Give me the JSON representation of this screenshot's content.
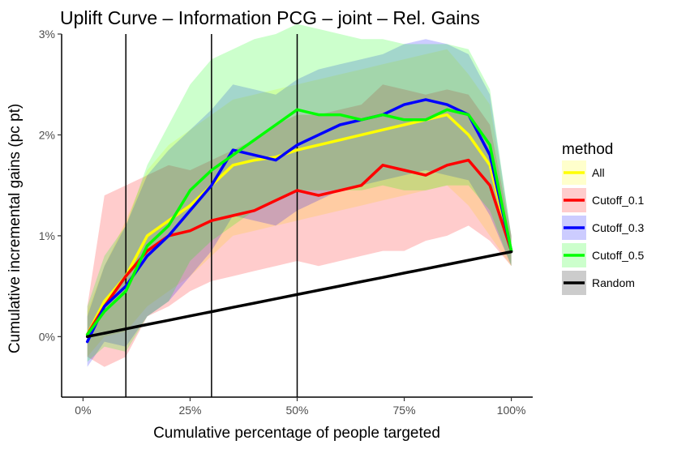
{
  "chart_data": {
    "type": "line",
    "title": "Uplift Curve –  Information PCG  –  joint  –  Rel. Gains",
    "xlabel": "Cumulative percentage of people targeted",
    "ylabel": "Cumulative incremental gains (pc pt)",
    "xlim": [
      -0.05,
      1.05
    ],
    "ylim": [
      -0.6,
      3.0
    ],
    "x_ticks": [
      0,
      0.25,
      0.5,
      0.75,
      1.0
    ],
    "x_tick_labels": [
      "0%",
      "25%",
      "50%",
      "75%",
      "100%"
    ],
    "y_ticks": [
      0,
      1,
      2,
      3
    ],
    "y_tick_labels": [
      "0%",
      "1%",
      "2%",
      "3%"
    ],
    "vlines": [
      0.1,
      0.3,
      0.5
    ],
    "grid": false,
    "legend": {
      "title": "method",
      "position": "right",
      "entries": [
        {
          "label": "All",
          "color": "#ffff00"
        },
        {
          "label": "Cutoff_0.1",
          "color": "#ff0000"
        },
        {
          "label": "Cutoff_0.3",
          "color": "#0000ff"
        },
        {
          "label": "Cutoff_0.5",
          "color": "#00ff00"
        },
        {
          "label": "Random",
          "color": "#000000"
        }
      ]
    },
    "x": [
      0.01,
      0.05,
      0.1,
      0.15,
      0.2,
      0.25,
      0.3,
      0.35,
      0.4,
      0.45,
      0.5,
      0.55,
      0.6,
      0.65,
      0.7,
      0.75,
      0.8,
      0.85,
      0.9,
      0.95,
      1.0
    ],
    "series": [
      {
        "name": "All",
        "color": "#ffff00",
        "values": [
          0.02,
          0.35,
          0.6,
          1.0,
          1.15,
          1.3,
          1.5,
          1.7,
          1.75,
          1.78,
          1.85,
          1.9,
          1.95,
          2.0,
          2.05,
          2.1,
          2.15,
          2.2,
          2.0,
          1.7,
          0.85
        ],
        "lower": [
          -0.2,
          0.0,
          0.05,
          0.3,
          0.45,
          0.6,
          0.8,
          1.0,
          1.05,
          1.1,
          1.15,
          1.2,
          1.25,
          1.3,
          1.35,
          1.4,
          1.45,
          1.5,
          1.3,
          1.0,
          0.7
        ],
        "upper": [
          0.25,
          0.7,
          1.15,
          1.65,
          1.9,
          2.05,
          2.2,
          2.35,
          2.4,
          2.45,
          2.5,
          2.55,
          2.6,
          2.65,
          2.7,
          2.75,
          2.8,
          2.85,
          2.6,
          2.3,
          1.0
        ]
      },
      {
        "name": "Cutoff_0.1",
        "color": "#ff0000",
        "values": [
          0.02,
          0.3,
          0.6,
          0.85,
          1.0,
          1.05,
          1.15,
          1.2,
          1.25,
          1.35,
          1.45,
          1.4,
          1.45,
          1.5,
          1.7,
          1.65,
          1.6,
          1.7,
          1.75,
          1.5,
          0.85
        ],
        "lower": [
          -0.2,
          -0.3,
          -0.2,
          0.2,
          0.3,
          0.45,
          0.55,
          0.6,
          0.65,
          0.7,
          0.75,
          0.7,
          0.75,
          0.8,
          0.85,
          0.85,
          0.95,
          1.0,
          1.1,
          0.95,
          0.7
        ],
        "upper": [
          0.3,
          1.4,
          1.5,
          1.6,
          1.7,
          1.65,
          1.75,
          1.85,
          1.95,
          2.1,
          2.2,
          2.2,
          2.25,
          2.3,
          2.5,
          2.45,
          2.4,
          2.45,
          2.4,
          2.1,
          1.0
        ]
      },
      {
        "name": "Cutoff_0.3",
        "color": "#0000ff",
        "values": [
          -0.05,
          0.3,
          0.5,
          0.8,
          1.0,
          1.25,
          1.5,
          1.85,
          1.8,
          1.75,
          1.9,
          2.0,
          2.1,
          2.15,
          2.2,
          2.3,
          2.35,
          2.3,
          2.2,
          1.8,
          0.85
        ],
        "lower": [
          -0.3,
          -0.05,
          -0.1,
          0.2,
          0.35,
          0.6,
          0.85,
          1.2,
          1.15,
          1.1,
          1.25,
          1.35,
          1.45,
          1.5,
          1.55,
          1.6,
          1.65,
          1.6,
          1.55,
          1.2,
          0.7
        ],
        "upper": [
          0.2,
          0.7,
          1.1,
          1.6,
          1.85,
          2.05,
          2.25,
          2.5,
          2.45,
          2.4,
          2.55,
          2.65,
          2.7,
          2.75,
          2.8,
          2.9,
          2.95,
          2.9,
          2.8,
          2.4,
          1.0
        ]
      },
      {
        "name": "Cutoff_0.5",
        "color": "#00ff00",
        "values": [
          0.02,
          0.25,
          0.45,
          0.9,
          1.1,
          1.45,
          1.65,
          1.8,
          1.95,
          2.1,
          2.25,
          2.2,
          2.2,
          2.15,
          2.2,
          2.15,
          2.15,
          2.25,
          2.2,
          1.9,
          0.85
        ],
        "lower": [
          -0.25,
          -0.1,
          -0.15,
          0.2,
          0.35,
          0.75,
          0.95,
          1.1,
          1.25,
          1.35,
          1.45,
          1.45,
          1.45,
          1.45,
          1.5,
          1.45,
          1.45,
          1.5,
          1.5,
          1.25,
          0.7
        ],
        "upper": [
          0.3,
          0.8,
          1.1,
          1.7,
          2.1,
          2.5,
          2.75,
          2.85,
          2.95,
          3.0,
          3.1,
          3.05,
          3.0,
          2.95,
          2.95,
          2.9,
          2.9,
          2.9,
          2.85,
          2.45,
          1.0
        ]
      },
      {
        "name": "Random",
        "color": "#000000",
        "values": [
          0.0,
          0.034,
          0.077,
          0.12,
          0.162,
          0.205,
          0.247,
          0.29,
          0.332,
          0.375,
          0.417,
          0.46,
          0.502,
          0.545,
          0.587,
          0.63,
          0.672,
          0.715,
          0.757,
          0.8,
          0.842
        ]
      }
    ]
  }
}
